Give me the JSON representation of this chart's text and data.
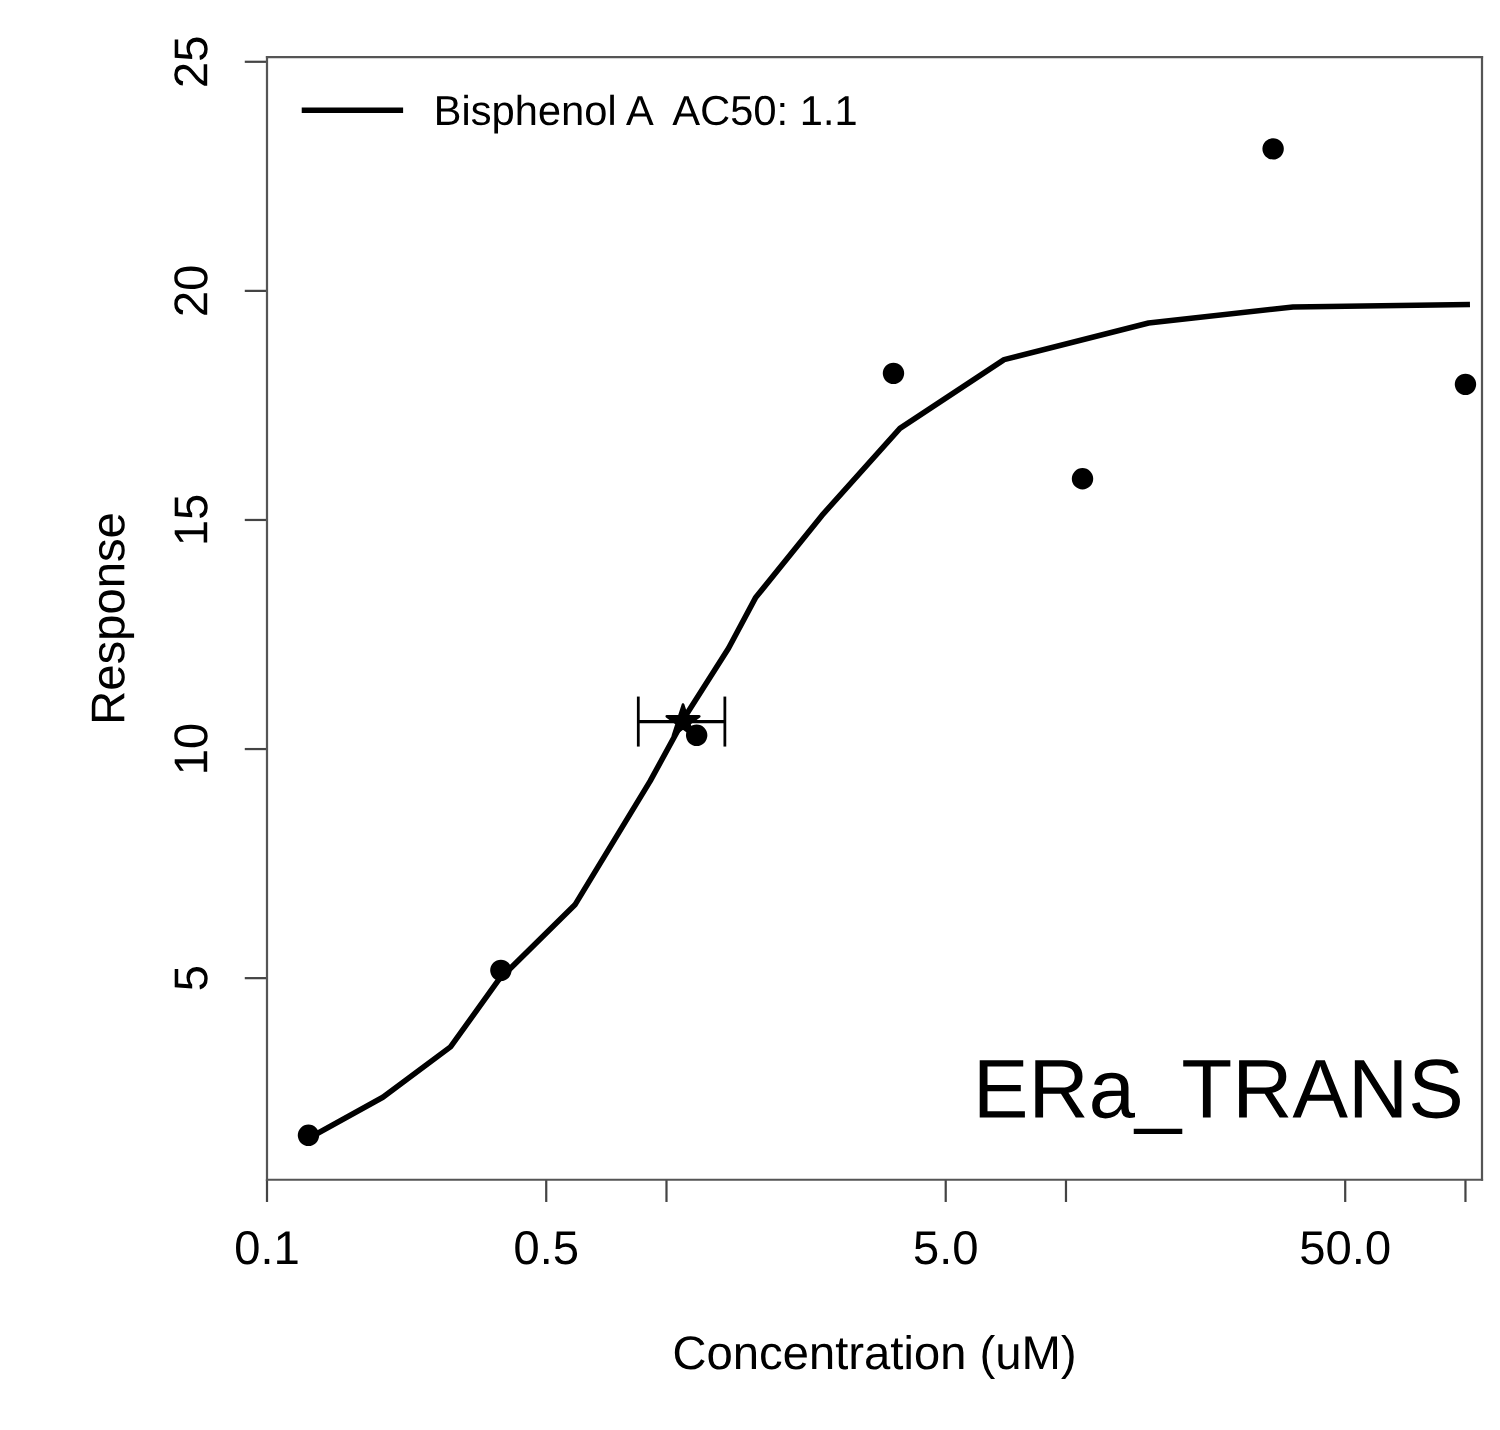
{
  "chart_data": {
    "type": "scatter",
    "xlabel": "Concentration (uM)",
    "ylabel": "Response",
    "log": "x",
    "xlim": [
      0.1,
      110
    ],
    "ylim": [
      0.6,
      25.1
    ],
    "xticks": [
      0.1,
      {
        "value": 0.5,
        "label": "0.5"
      },
      {
        "value": 1,
        "label": null
      },
      {
        "value": 5,
        "label": "5.0"
      },
      {
        "value": 10,
        "label": null
      },
      {
        "value": 50,
        "label": "50.0"
      },
      {
        "value": 100,
        "label": null
      }
    ],
    "yticks": [
      5,
      10,
      15,
      20,
      25
    ],
    "grid": false,
    "legend": "top left",
    "series": [
      {
        "type": "line",
        "name": "Bisphenol A  AC50: 1.1",
        "color": "#000000",
        "marker": "none",
        "line_style": "solid",
        "x": [
          0.133,
          0.195,
          0.288,
          0.38,
          0.59,
          0.91,
          1.13,
          1.43,
          1.67,
          2.45,
          3.84,
          7.0,
          16.1,
          37,
          101
        ],
        "values": [
          1.6,
          2.4,
          3.5,
          4.96,
          6.6,
          9.3,
          10.8,
          12.2,
          13.3,
          15.1,
          17.0,
          18.5,
          19.3,
          19.65,
          19.7
        ]
      },
      {
        "color": "#000000",
        "marker": "circle",
        "x": [
          0.127,
          0.385,
          1.19,
          3.7,
          11,
          33,
          100
        ],
        "values": [
          1.57,
          5.17,
          10.3,
          18.2,
          15.9,
          23.1,
          17.96
        ]
      },
      {
        "color": "#000000",
        "marker": "star",
        "x": [
          1.1
        ],
        "values": [
          10.6
        ],
        "xerrors": [
          [
            0.85,
            1.4
          ]
        ]
      }
    ],
    "annotations": [
      "ERa_TRANS"
    ]
  }
}
